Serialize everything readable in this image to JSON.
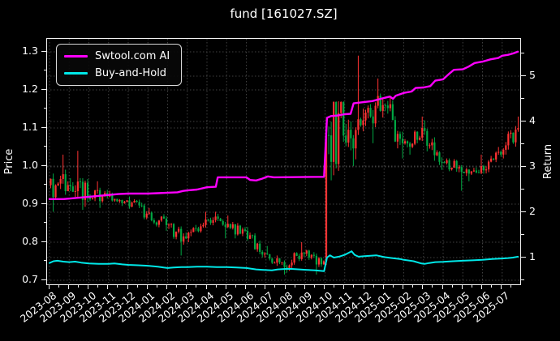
{
  "window": {
    "background": "#000000",
    "text_color": "#ffffff"
  },
  "chart_data": {
    "type": "candlestick+line",
    "title": "fund [161027.SZ]",
    "grid": {
      "show": true,
      "style": "dotted",
      "color": "#404040"
    },
    "spine_color": "#f2f2f2",
    "left_axis": {
      "label": "Price",
      "ticks": [
        0.7,
        0.8,
        0.9,
        1.0,
        1.1,
        1.2,
        1.3
      ],
      "range": [
        0.685,
        1.335
      ]
    },
    "right_axis": {
      "label": "Return",
      "ticks": [
        1,
        2,
        3,
        4,
        5
      ],
      "range": [
        0.375,
        5.82
      ]
    },
    "x_axis": {
      "tick_labels": [
        "2023-08",
        "2023-09",
        "2023-10",
        "2023-11",
        "2023-12",
        "2024-01",
        "2024-02",
        "2024-03",
        "2024-04",
        "2024-05",
        "2024-06",
        "2024-07",
        "2024-08",
        "2024-09",
        "2024-10",
        "2024-11",
        "2024-12",
        "2025-01",
        "2025-02",
        "2025-03",
        "2025-04",
        "2025-05",
        "2025-06",
        "2025-07"
      ],
      "label_rotation_deg": 38
    },
    "legend": {
      "position": "top-left",
      "entries": [
        {
          "label": "Swtool.com AI",
          "color": "#ff00ff"
        },
        {
          "label": "Buy-and-Hold",
          "color": "#00e8e8"
        }
      ]
    },
    "candle_colors": {
      "up": "#ff3232",
      "down": "#00a843"
    },
    "monthly_ohlc": [
      {
        "month": "2023-08",
        "open": 0.95,
        "high": 1.03,
        "low": 0.88,
        "close": 0.95
      },
      {
        "month": "2023-09",
        "open": 0.95,
        "high": 1.04,
        "low": 0.885,
        "close": 0.92
      },
      {
        "month": "2023-10",
        "open": 0.92,
        "high": 0.96,
        "low": 0.89,
        "close": 0.92
      },
      {
        "month": "2023-11",
        "open": 0.92,
        "high": 0.935,
        "low": 0.895,
        "close": 0.91
      },
      {
        "month": "2023-12",
        "open": 0.91,
        "high": 0.92,
        "low": 0.86,
        "close": 0.875
      },
      {
        "month": "2024-01",
        "open": 0.875,
        "high": 0.89,
        "low": 0.83,
        "close": 0.845
      },
      {
        "month": "2024-02",
        "open": 0.845,
        "high": 0.85,
        "low": 0.765,
        "close": 0.81
      },
      {
        "month": "2024-03",
        "open": 0.81,
        "high": 0.88,
        "low": 0.8,
        "close": 0.86
      },
      {
        "month": "2024-04",
        "open": 0.86,
        "high": 0.88,
        "low": 0.81,
        "close": 0.84
      },
      {
        "month": "2024-05",
        "open": 0.84,
        "high": 0.87,
        "low": 0.81,
        "close": 0.83
      },
      {
        "month": "2024-06",
        "open": 0.83,
        "high": 0.84,
        "low": 0.76,
        "close": 0.77
      },
      {
        "month": "2024-07",
        "open": 0.77,
        "high": 0.79,
        "low": 0.715,
        "close": 0.735
      },
      {
        "month": "2024-08",
        "open": 0.735,
        "high": 0.8,
        "low": 0.72,
        "close": 0.77
      },
      {
        "month": "2024-09",
        "open": 0.77,
        "high": 0.78,
        "low": 0.715,
        "close": 0.75
      },
      {
        "month": "2024-10",
        "open": 0.75,
        "high": 1.17,
        "low": 0.74,
        "close": 1.08,
        "gap": true
      },
      {
        "month": "2024-11",
        "open": 1.08,
        "high": 1.29,
        "low": 1.0,
        "close": 1.12
      },
      {
        "month": "2024-12",
        "open": 1.12,
        "high": 1.23,
        "low": 1.06,
        "close": 1.16
      },
      {
        "month": "2025-01",
        "open": 1.16,
        "high": 1.18,
        "low": 1.02,
        "close": 1.06
      },
      {
        "month": "2025-02",
        "open": 1.06,
        "high": 1.13,
        "low": 1.03,
        "close": 1.1
      },
      {
        "month": "2025-03",
        "open": 1.1,
        "high": 1.12,
        "low": 0.99,
        "close": 1.01
      },
      {
        "month": "2025-04",
        "open": 1.01,
        "high": 1.02,
        "low": 0.935,
        "close": 0.985
      },
      {
        "month": "2025-05",
        "open": 0.985,
        "high": 1.03,
        "low": 0.96,
        "close": 1.0
      },
      {
        "month": "2025-06",
        "open": 1.0,
        "high": 1.05,
        "low": 0.98,
        "close": 1.03
      },
      {
        "month": "2025-07",
        "open": 1.03,
        "high": 1.13,
        "low": 1.02,
        "close": 1.1
      }
    ],
    "series": [
      {
        "name": "Swtool.com AI",
        "axis": "right",
        "color": "#ff00ff",
        "width": 2.4,
        "points": [
          [
            0,
            2.29
          ],
          [
            0.7,
            2.29
          ],
          [
            1,
            2.3
          ],
          [
            1.5,
            2.32
          ],
          [
            2,
            2.34
          ],
          [
            2.5,
            2.36
          ],
          [
            3,
            2.38
          ],
          [
            3.5,
            2.4
          ],
          [
            4,
            2.41
          ],
          [
            5,
            2.41
          ],
          [
            5.5,
            2.42
          ],
          [
            6,
            2.43
          ],
          [
            6.5,
            2.44
          ],
          [
            6.8,
            2.47
          ],
          [
            7,
            2.48
          ],
          [
            7.5,
            2.5
          ],
          [
            8,
            2.55
          ],
          [
            8.45,
            2.56
          ],
          [
            8.55,
            2.77
          ],
          [
            10,
            2.77
          ],
          [
            10.2,
            2.71
          ],
          [
            10.5,
            2.7
          ],
          [
            10.8,
            2.74
          ],
          [
            11.1,
            2.79
          ],
          [
            11.4,
            2.77
          ],
          [
            13.95,
            2.78
          ],
          [
            14.1,
            4.08
          ],
          [
            14.3,
            4.12
          ],
          [
            14.6,
            4.13
          ],
          [
            15,
            4.16
          ],
          [
            15.3,
            4.17
          ],
          [
            15.45,
            4.4
          ],
          [
            16,
            4.43
          ],
          [
            16.4,
            4.45
          ],
          [
            17,
            4.52
          ],
          [
            17.3,
            4.55
          ],
          [
            17.45,
            4.5
          ],
          [
            17.6,
            4.57
          ],
          [
            18,
            4.63
          ],
          [
            18.4,
            4.66
          ],
          [
            18.6,
            4.74
          ],
          [
            19,
            4.75
          ],
          [
            19.35,
            4.78
          ],
          [
            19.6,
            4.9
          ],
          [
            20,
            4.93
          ],
          [
            20.3,
            5.05
          ],
          [
            20.55,
            5.14
          ],
          [
            21,
            5.15
          ],
          [
            21.3,
            5.21
          ],
          [
            21.6,
            5.29
          ],
          [
            22,
            5.32
          ],
          [
            22.4,
            5.37
          ],
          [
            22.8,
            5.4
          ],
          [
            23,
            5.45
          ],
          [
            23.3,
            5.47
          ],
          [
            23.55,
            5.5
          ],
          [
            23.8,
            5.54
          ]
        ]
      },
      {
        "name": "Buy-and-Hold",
        "axis": "right",
        "color": "#00e8e8",
        "width": 2.0,
        "points": [
          [
            0,
            0.88
          ],
          [
            0.2,
            0.92
          ],
          [
            0.4,
            0.93
          ],
          [
            0.7,
            0.91
          ],
          [
            1,
            0.9
          ],
          [
            1.3,
            0.91
          ],
          [
            1.6,
            0.89
          ],
          [
            2,
            0.87
          ],
          [
            2.5,
            0.86
          ],
          [
            3,
            0.86
          ],
          [
            3.3,
            0.87
          ],
          [
            3.7,
            0.85
          ],
          [
            4,
            0.84
          ],
          [
            4.5,
            0.83
          ],
          [
            5,
            0.82
          ],
          [
            5.5,
            0.8
          ],
          [
            5.8,
            0.78
          ],
          [
            6,
            0.77
          ],
          [
            6.3,
            0.78
          ],
          [
            6.7,
            0.79
          ],
          [
            7,
            0.79
          ],
          [
            7.5,
            0.8
          ],
          [
            8,
            0.8
          ],
          [
            8.5,
            0.79
          ],
          [
            9,
            0.79
          ],
          [
            9.5,
            0.78
          ],
          [
            10,
            0.77
          ],
          [
            10.5,
            0.74
          ],
          [
            10.8,
            0.73
          ],
          [
            11,
            0.725
          ],
          [
            11.3,
            0.72
          ],
          [
            11.6,
            0.74
          ],
          [
            12,
            0.75
          ],
          [
            12.3,
            0.75
          ],
          [
            12.7,
            0.74
          ],
          [
            13,
            0.73
          ],
          [
            13.5,
            0.72
          ],
          [
            13.95,
            0.7
          ],
          [
            14.1,
            1.0
          ],
          [
            14.25,
            1.05
          ],
          [
            14.45,
            1.0
          ],
          [
            14.7,
            1.02
          ],
          [
            15,
            1.06
          ],
          [
            15.35,
            1.14
          ],
          [
            15.5,
            1.06
          ],
          [
            15.7,
            1.02
          ],
          [
            16,
            1.03
          ],
          [
            16.3,
            1.04
          ],
          [
            16.6,
            1.05
          ],
          [
            17,
            1.01
          ],
          [
            17.4,
            0.99
          ],
          [
            17.8,
            0.97
          ],
          [
            18,
            0.95
          ],
          [
            18.5,
            0.92
          ],
          [
            18.9,
            0.87
          ],
          [
            19.05,
            0.86
          ],
          [
            19.3,
            0.88
          ],
          [
            19.6,
            0.9
          ],
          [
            20,
            0.905
          ],
          [
            20.5,
            0.92
          ],
          [
            21,
            0.93
          ],
          [
            21.5,
            0.94
          ],
          [
            22,
            0.95
          ],
          [
            22.5,
            0.97
          ],
          [
            23,
            0.98
          ],
          [
            23.3,
            0.99
          ],
          [
            23.55,
            1.0
          ],
          [
            23.8,
            1.02
          ]
        ]
      }
    ]
  }
}
